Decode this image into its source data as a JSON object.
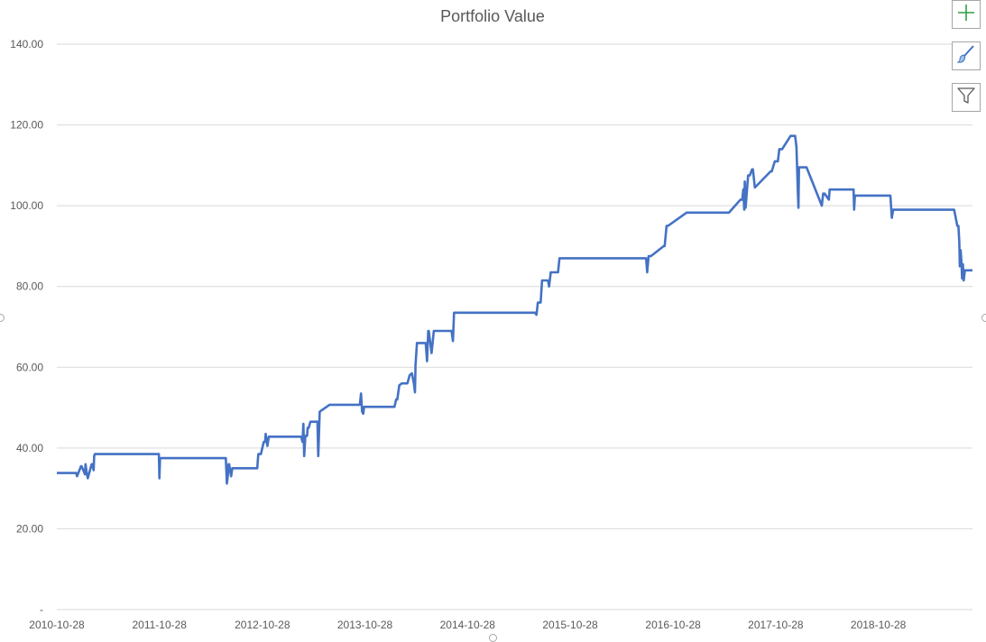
{
  "toolbar": {
    "elements_icon": "plus-icon",
    "styles_icon": "brush-icon",
    "filters_icon": "funnel-icon",
    "accent_color": "#2e9e44"
  },
  "chart_data": {
    "type": "line",
    "title": "Portfolio Value",
    "xlabel": "",
    "ylabel": "",
    "ylim": [
      0,
      140
    ],
    "xlim": [
      "2010-10-28",
      "2019-09-28"
    ],
    "yticks": [
      "-",
      "20.00",
      "40.00",
      "60.00",
      "80.00",
      "100.00",
      "120.00",
      "140.00"
    ],
    "ytick_values": [
      0,
      20,
      40,
      60,
      80,
      100,
      120,
      140
    ],
    "xticks": [
      "2010-10-28",
      "2011-10-28",
      "2012-10-28",
      "2013-10-28",
      "2014-10-28",
      "2015-10-28",
      "2016-10-28",
      "2017-10-28",
      "2018-10-28"
    ],
    "grid": true,
    "legend": "none",
    "line_color": "#4472c4",
    "series": [
      {
        "x": [
          "2010-10-28",
          "2011-01-05",
          "2011-01-08",
          "2011-01-22",
          "2011-01-24",
          "2011-02-05",
          "2011-02-07",
          "2011-02-11",
          "2011-02-15",
          "2011-03-01",
          "2011-03-03",
          "2011-03-08",
          "2011-03-10",
          "2011-03-12",
          "2011-03-15",
          "2011-03-20",
          "2011-10-26",
          "2011-10-28",
          "2011-10-30",
          "2012-06-20",
          "2012-06-22",
          "2012-06-24",
          "2012-06-27",
          "2012-06-30",
          "2012-07-02",
          "2012-07-09",
          "2012-07-13",
          "2012-07-22",
          "2012-07-26",
          "2012-10-10",
          "2012-10-12",
          "2012-10-14",
          "2012-10-20",
          "2012-10-23",
          "2012-11-02",
          "2012-11-07",
          "2012-11-09",
          "2012-11-15",
          "2012-11-20",
          "2013-03-15",
          "2013-03-20",
          "2013-03-23",
          "2013-03-26",
          "2013-03-30",
          "2013-04-05",
          "2013-04-07",
          "2013-04-11",
          "2013-04-17",
          "2013-04-24",
          "2013-05-12",
          "2013-05-15",
          "2013-05-20",
          "2013-06-24",
          "2013-06-26",
          "2013-07-02",
          "2013-07-15",
          "2013-07-18",
          "2013-10-10",
          "2013-10-14",
          "2013-10-18",
          "2013-10-22",
          "2013-10-25",
          "2013-10-28",
          "2013-11-02",
          "2013-11-05",
          "2014-02-10",
          "2014-02-16",
          "2014-02-20",
          "2014-02-27",
          "2014-03-08",
          "2014-03-28",
          "2014-04-05",
          "2014-04-13",
          "2014-04-20",
          "2014-04-24",
          "2014-04-26",
          "2014-05-01",
          "2014-05-12",
          "2014-05-15",
          "2014-06-01",
          "2014-06-06",
          "2014-06-10",
          "2014-06-12",
          "2014-06-22",
          "2014-06-30",
          "2014-07-04",
          "2014-07-08",
          "2014-07-11",
          "2014-09-01",
          "2014-09-06",
          "2014-09-10",
          "2015-06-20",
          "2015-06-25",
          "2015-06-30",
          "2015-07-05",
          "2015-07-15",
          "2015-07-20",
          "2015-08-10",
          "2015-08-14",
          "2015-08-20",
          "2015-09-15",
          "2015-09-20",
          "2016-07-20",
          "2016-07-24",
          "2016-07-28",
          "2016-08-02",
          "2016-08-10",
          "2016-09-25",
          "2016-09-28",
          "2016-10-05",
          "2016-10-10",
          "2016-12-15",
          "2016-12-20",
          "2017-05-10",
          "2017-05-15",
          "2017-06-25",
          "2017-07-01",
          "2017-07-05",
          "2017-07-08",
          "2017-07-10",
          "2017-07-13",
          "2017-07-22",
          "2017-07-28",
          "2017-08-05",
          "2017-08-08",
          "2017-08-15",
          "2017-10-10",
          "2017-10-12",
          "2017-10-14",
          "2017-10-25",
          "2017-11-05",
          "2017-11-10",
          "2017-11-20",
          "2017-12-20",
          "2017-12-25",
          "2018-01-05",
          "2018-01-10",
          "2018-01-15",
          "2018-01-17",
          "2018-01-19",
          "2018-01-25",
          "2018-02-01",
          "2018-02-05",
          "2018-02-15",
          "2018-04-10",
          "2018-04-15",
          "2018-04-17",
          "2018-04-20",
          "2018-05-05",
          "2018-05-08",
          "2018-08-01",
          "2018-08-03",
          "2018-08-06",
          "2018-08-10",
          "2018-12-10",
          "2018-12-15",
          "2018-12-20",
          "2019-01-10",
          "2019-01-15",
          "2019-01-18",
          "2019-01-22",
          "2019-01-25",
          "2019-01-28",
          "2019-01-31",
          "2019-02-02",
          "2019-07-20",
          "2019-07-25",
          "2019-08-05",
          "2019-08-09",
          "2019-08-12",
          "2019-08-14",
          "2019-08-17",
          "2019-08-20",
          "2019-08-22",
          "2019-08-25",
          "2019-08-28",
          "2019-09-01",
          "2019-09-05",
          "2019-09-10",
          "2019-09-28"
        ],
        "y": [
          33.8,
          33.8,
          33.0,
          35.5,
          35.5,
          33.5,
          36.0,
          34.0,
          32.5,
          36.0,
          36.0,
          34.5,
          38.0,
          38.5,
          38.5,
          38.5,
          38.5,
          32.5,
          37.5,
          37.5,
          34.5,
          31.2,
          33.0,
          36.0,
          36.0,
          33.0,
          35.0,
          35.0,
          35.0,
          35.0,
          37.0,
          38.5,
          38.5,
          38.5,
          41.5,
          41.5,
          43.5,
          40.5,
          42.8,
          42.8,
          41.5,
          46.0,
          38.0,
          43.0,
          43.0,
          45.0,
          45.0,
          46.5,
          46.5,
          46.5,
          38.0,
          49.0,
          50.7,
          50.7,
          50.7,
          50.7,
          50.7,
          50.7,
          53.5,
          49.0,
          48.5,
          50.2,
          50.2,
          50.2,
          50.2,
          50.2,
          52.0,
          52.0,
          55.5,
          56.0,
          56.0,
          58.0,
          58.5,
          56.0,
          53.8,
          60.5,
          66.0,
          66.0,
          66.0,
          66.0,
          61.5,
          69.0,
          69.0,
          63.5,
          69.0,
          69.0,
          69.0,
          69.0,
          69.0,
          66.5,
          73.5,
          73.5,
          73.5,
          73.0,
          76.0,
          76.0,
          81.5,
          81.5,
          80.0,
          83.5,
          83.5,
          87.0,
          87.0,
          87.0,
          83.5,
          87.5,
          87.5,
          90.0,
          90.0,
          95.0,
          95.0,
          98.3,
          98.3,
          98.3,
          98.3,
          101.5,
          101.5,
          104.0,
          99.0,
          106.0,
          99.5,
          107.5,
          107.5,
          109.0,
          109.0,
          104.5,
          108.5,
          108.5,
          108.5,
          111.0,
          111.0,
          114.0,
          114.0,
          117.3,
          117.3,
          117.3,
          114.5,
          103.0,
          99.5,
          109.5,
          109.5,
          109.5,
          109.5,
          109.5,
          100.0,
          103.0,
          103.0,
          103.0,
          101.5,
          104.0,
          104.0,
          99.0,
          102.5,
          102.5,
          102.5,
          97.0,
          99.0,
          99.0,
          99.0,
          99.0,
          99.0,
          99.0,
          99.0,
          99.0,
          99.0,
          99.0,
          99.0,
          95.0,
          95.0,
          91.0,
          85.0,
          89.0,
          86.0,
          82.0,
          85.5,
          81.5,
          84.0,
          84.0,
          84.0,
          84.0
        ]
      }
    ]
  }
}
